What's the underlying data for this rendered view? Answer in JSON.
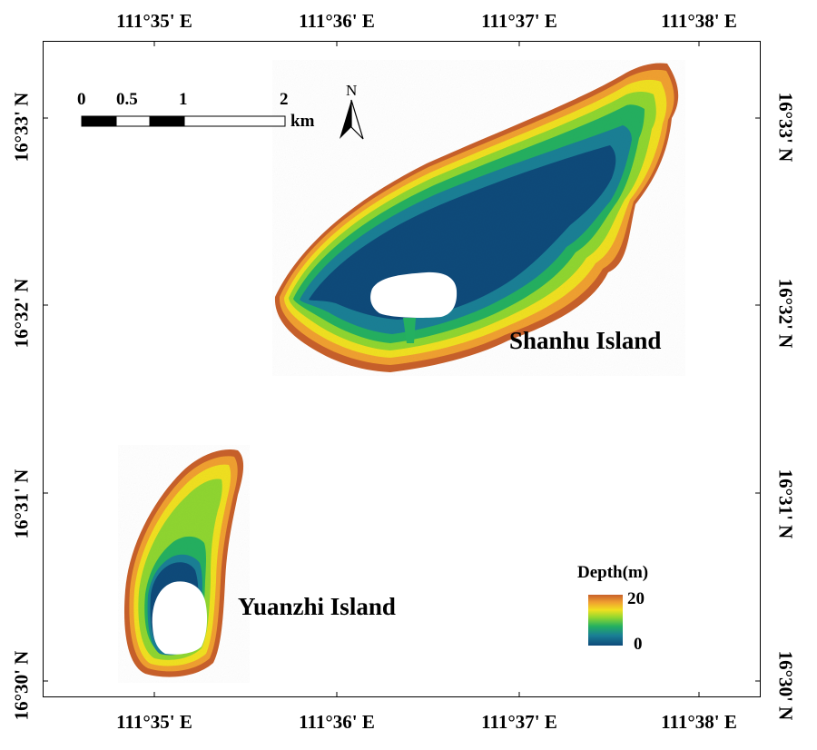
{
  "map": {
    "top_lon_labels": [
      "111°35' E",
      "111°36' E",
      "111°37' E",
      "111°38' E"
    ],
    "bottom_lon_labels": [
      "111°35' E",
      "111°36' E",
      "111°37' E",
      "111°38' E"
    ],
    "left_lat_labels": [
      "16°33' N",
      "16°32' N",
      "16°31' N",
      "16°30' N"
    ],
    "right_lat_labels": [
      "16°33' N",
      "16°32' N",
      "16°31' N",
      "16°30' N"
    ],
    "islands": {
      "shanhu": "Shanhu Island",
      "yuanzhi": "Yuanzhi Island"
    },
    "scale_bar": {
      "ticks": [
        "0",
        "0.5",
        "1",
        "2"
      ],
      "unit": "km"
    },
    "north_arrow": {
      "label": "N"
    },
    "legend": {
      "title": "Depth(m)",
      "max": "20",
      "min": "0",
      "colors": [
        "#0e4a7a",
        "#1a7f95",
        "#24b060",
        "#8fd630",
        "#f0e020",
        "#f0a030",
        "#c8602a"
      ]
    }
  }
}
